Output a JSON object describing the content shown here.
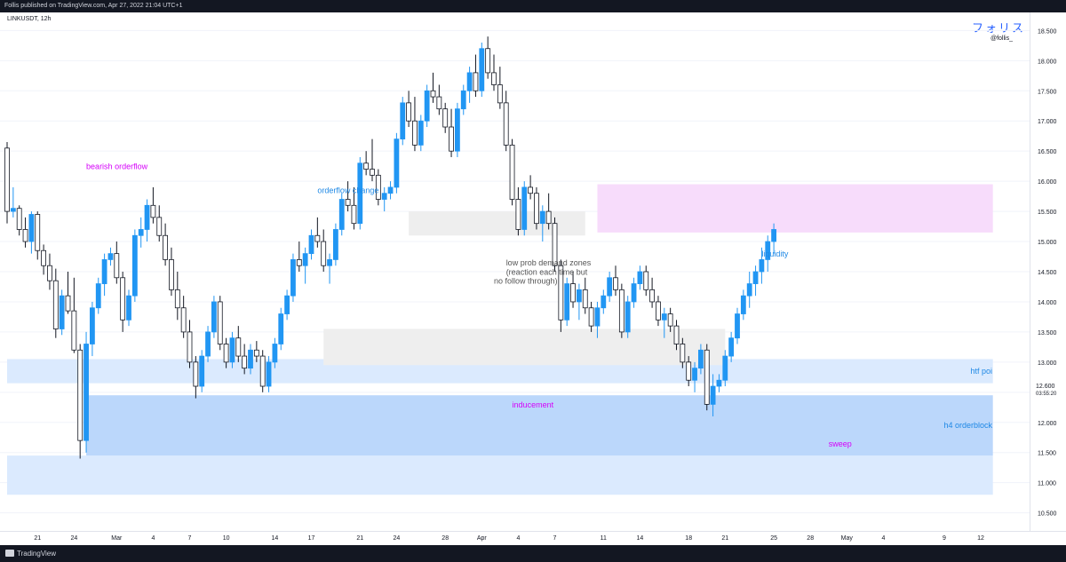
{
  "header": {
    "published_text": "Follis published on TradingView.com, Apr 27, 2022 21:04 UTC+1",
    "symbol": "LINKUSDT, 12h",
    "brand": "フォリス",
    "handle": "@follis_"
  },
  "footer": {
    "logo_text": "TradingView"
  },
  "chart_data": {
    "type": "candlestick",
    "symbol": "LINKUSDT",
    "interval": "12h",
    "y_axis": {
      "range": [
        10.2,
        18.8
      ],
      "ticks": [
        "18.500",
        "18.000",
        "17.500",
        "17.000",
        "16.500",
        "16.000",
        "15.500",
        "15.000",
        "14.500",
        "14.000",
        "13.500",
        "13.000",
        "12.500",
        "12.000",
        "11.500",
        "11.000",
        "10.500"
      ]
    },
    "x_axis": {
      "ticks": [
        {
          "label": "21",
          "i": 5
        },
        {
          "label": "24",
          "i": 11
        },
        {
          "label": "Mar",
          "i": 18
        },
        {
          "label": "4",
          "i": 24
        },
        {
          "label": "7",
          "i": 30
        },
        {
          "label": "10",
          "i": 36
        },
        {
          "label": "14",
          "i": 44
        },
        {
          "label": "17",
          "i": 50
        },
        {
          "label": "21",
          "i": 58
        },
        {
          "label": "24",
          "i": 64
        },
        {
          "label": "28",
          "i": 72
        },
        {
          "label": "Apr",
          "i": 78
        },
        {
          "label": "4",
          "i": 84
        },
        {
          "label": "7",
          "i": 90
        },
        {
          "label": "11",
          "i": 98
        },
        {
          "label": "14",
          "i": 104
        },
        {
          "label": "18",
          "i": 112
        },
        {
          "label": "21",
          "i": 118
        },
        {
          "label": "25",
          "i": 126
        },
        {
          "label": "28",
          "i": 132
        },
        {
          "label": "May",
          "i": 138
        },
        {
          "label": "4",
          "i": 144
        },
        {
          "label": "9",
          "i": 154
        },
        {
          "label": "12",
          "i": 160
        }
      ]
    },
    "price_label": {
      "value": "12.600",
      "countdown": "03:55:20"
    },
    "colors": {
      "up": "#2196f3",
      "down": "#131722",
      "grid": "#f0f3fa"
    },
    "candles": [
      [
        16.55,
        16.65,
        15.3,
        15.5
      ],
      [
        15.5,
        15.9,
        15.4,
        15.55
      ],
      [
        15.55,
        15.6,
        15.1,
        15.2
      ],
      [
        15.2,
        15.4,
        14.9,
        15.0
      ],
      [
        15.0,
        15.5,
        14.8,
        15.45
      ],
      [
        15.45,
        15.5,
        14.7,
        14.85
      ],
      [
        14.85,
        14.95,
        14.45,
        14.6
      ],
      [
        14.6,
        14.8,
        14.2,
        14.35
      ],
      [
        14.35,
        14.55,
        13.4,
        13.55
      ],
      [
        13.55,
        14.2,
        13.45,
        14.1
      ],
      [
        14.1,
        14.5,
        13.8,
        13.85
      ],
      [
        13.85,
        14.4,
        13.15,
        13.2
      ],
      [
        13.2,
        13.3,
        11.4,
        11.7
      ],
      [
        11.7,
        13.5,
        11.5,
        13.3
      ],
      [
        13.3,
        14.0,
        13.1,
        13.9
      ],
      [
        13.9,
        14.4,
        13.8,
        14.3
      ],
      [
        14.3,
        14.8,
        14.1,
        14.7
      ],
      [
        14.7,
        14.9,
        14.6,
        14.8
      ],
      [
        14.8,
        15.0,
        14.3,
        14.4
      ],
      [
        14.4,
        14.5,
        13.5,
        13.7
      ],
      [
        13.7,
        14.2,
        13.6,
        14.1
      ],
      [
        14.1,
        15.2,
        14.0,
        15.1
      ],
      [
        15.1,
        15.4,
        14.9,
        15.2
      ],
      [
        15.2,
        15.7,
        15.0,
        15.6
      ],
      [
        15.6,
        15.9,
        15.3,
        15.4
      ],
      [
        15.4,
        15.6,
        15.0,
        15.1
      ],
      [
        15.1,
        15.3,
        14.6,
        14.7
      ],
      [
        14.7,
        14.9,
        14.1,
        14.2
      ],
      [
        14.2,
        14.5,
        13.7,
        13.9
      ],
      [
        13.9,
        14.1,
        13.4,
        13.5
      ],
      [
        13.5,
        13.7,
        12.9,
        13.0
      ],
      [
        13.0,
        13.1,
        12.4,
        12.6
      ],
      [
        12.6,
        13.2,
        12.5,
        13.1
      ],
      [
        13.1,
        13.6,
        13.0,
        13.5
      ],
      [
        13.5,
        14.1,
        13.4,
        14.0
      ],
      [
        14.0,
        14.1,
        13.2,
        13.3
      ],
      [
        13.3,
        13.4,
        12.9,
        13.0
      ],
      [
        13.0,
        13.5,
        12.9,
        13.4
      ],
      [
        13.4,
        13.6,
        13.0,
        13.1
      ],
      [
        13.1,
        13.3,
        12.8,
        12.9
      ],
      [
        12.9,
        13.3,
        12.8,
        13.2
      ],
      [
        13.2,
        13.35,
        13.0,
        13.1
      ],
      [
        13.1,
        13.2,
        12.5,
        12.6
      ],
      [
        12.6,
        13.1,
        12.5,
        13.0
      ],
      [
        13.0,
        13.4,
        12.9,
        13.3
      ],
      [
        13.3,
        13.9,
        13.2,
        13.8
      ],
      [
        13.8,
        14.2,
        13.7,
        14.1
      ],
      [
        14.1,
        14.8,
        14.0,
        14.7
      ],
      [
        14.7,
        15.0,
        14.5,
        14.6
      ],
      [
        14.6,
        14.9,
        14.3,
        14.8
      ],
      [
        14.8,
        15.2,
        14.7,
        15.1
      ],
      [
        15.1,
        15.4,
        14.9,
        15.0
      ],
      [
        15.0,
        15.2,
        14.5,
        14.6
      ],
      [
        14.6,
        14.8,
        14.3,
        14.7
      ],
      [
        14.7,
        15.3,
        14.6,
        15.2
      ],
      [
        15.2,
        15.8,
        15.1,
        15.7
      ],
      [
        15.7,
        16.0,
        15.5,
        15.6
      ],
      [
        15.6,
        15.9,
        15.2,
        15.3
      ],
      [
        15.3,
        16.4,
        15.2,
        16.3
      ],
      [
        16.3,
        16.5,
        16.1,
        16.2
      ],
      [
        16.2,
        16.7,
        16.0,
        16.1
      ],
      [
        16.1,
        16.2,
        15.6,
        15.7
      ],
      [
        15.7,
        15.9,
        15.5,
        15.8
      ],
      [
        15.8,
        16.0,
        15.7,
        15.9
      ],
      [
        15.9,
        16.8,
        15.8,
        16.7
      ],
      [
        16.7,
        17.4,
        16.6,
        17.3
      ],
      [
        17.3,
        17.5,
        16.9,
        17.0
      ],
      [
        17.0,
        17.4,
        16.5,
        16.6
      ],
      [
        16.6,
        17.1,
        16.5,
        17.0
      ],
      [
        17.0,
        17.6,
        16.9,
        17.5
      ],
      [
        17.5,
        17.8,
        17.3,
        17.4
      ],
      [
        17.4,
        17.6,
        17.1,
        17.2
      ],
      [
        17.2,
        17.3,
        16.8,
        16.9
      ],
      [
        16.9,
        17.2,
        16.4,
        16.5
      ],
      [
        16.5,
        17.3,
        16.4,
        17.2
      ],
      [
        17.2,
        17.6,
        17.1,
        17.5
      ],
      [
        17.5,
        17.9,
        17.3,
        17.8
      ],
      [
        17.8,
        18.1,
        17.4,
        17.5
      ],
      [
        17.5,
        18.3,
        17.4,
        18.2
      ],
      [
        18.2,
        18.4,
        17.7,
        17.8
      ],
      [
        17.8,
        18.1,
        17.5,
        17.6
      ],
      [
        17.6,
        17.9,
        17.2,
        17.3
      ],
      [
        17.3,
        17.5,
        16.5,
        16.6
      ],
      [
        16.6,
        16.7,
        15.6,
        15.7
      ],
      [
        15.7,
        15.9,
        15.1,
        15.2
      ],
      [
        15.2,
        16.0,
        15.1,
        15.9
      ],
      [
        15.9,
        16.1,
        15.7,
        15.8
      ],
      [
        15.8,
        15.9,
        15.2,
        15.3
      ],
      [
        15.3,
        15.6,
        15.0,
        15.5
      ],
      [
        15.5,
        15.8,
        15.2,
        15.3
      ],
      [
        15.3,
        15.4,
        14.5,
        14.6
      ],
      [
        14.6,
        14.7,
        13.5,
        13.7
      ],
      [
        13.7,
        14.4,
        13.6,
        14.3
      ],
      [
        14.3,
        14.5,
        13.9,
        14.0
      ],
      [
        14.0,
        14.3,
        13.7,
        14.2
      ],
      [
        14.2,
        14.4,
        13.8,
        13.9
      ],
      [
        13.9,
        14.0,
        13.5,
        13.6
      ],
      [
        13.6,
        14.0,
        13.4,
        13.9
      ],
      [
        13.9,
        14.2,
        13.8,
        14.1
      ],
      [
        14.1,
        14.5,
        14.0,
        14.4
      ],
      [
        14.4,
        14.6,
        14.1,
        14.2
      ],
      [
        14.2,
        14.3,
        13.4,
        13.5
      ],
      [
        13.5,
        14.1,
        13.4,
        14.0
      ],
      [
        14.0,
        14.4,
        13.9,
        14.3
      ],
      [
        14.3,
        14.6,
        14.2,
        14.5
      ],
      [
        14.5,
        14.6,
        14.1,
        14.2
      ],
      [
        14.2,
        14.4,
        13.9,
        14.0
      ],
      [
        14.0,
        14.1,
        13.6,
        13.7
      ],
      [
        13.7,
        13.9,
        13.4,
        13.8
      ],
      [
        13.8,
        13.9,
        13.5,
        13.6
      ],
      [
        13.6,
        13.7,
        13.2,
        13.3
      ],
      [
        13.3,
        13.4,
        12.9,
        13.0
      ],
      [
        13.0,
        13.1,
        12.6,
        12.7
      ],
      [
        12.7,
        13.0,
        12.5,
        12.9
      ],
      [
        12.9,
        13.3,
        12.8,
        13.2
      ],
      [
        13.2,
        13.3,
        12.2,
        12.3
      ],
      [
        12.3,
        12.8,
        12.1,
        12.6
      ],
      [
        12.6,
        12.8,
        12.5,
        12.7
      ],
      [
        12.7,
        13.2,
        12.6,
        13.1
      ],
      [
        13.1,
        13.5,
        13.0,
        13.4
      ],
      [
        13.4,
        13.9,
        13.3,
        13.8
      ],
      [
        13.8,
        14.2,
        13.7,
        14.1
      ],
      [
        14.1,
        14.5,
        13.9,
        14.3
      ],
      [
        14.3,
        14.6,
        14.1,
        14.5
      ],
      [
        14.5,
        14.9,
        14.3,
        14.7
      ],
      [
        14.7,
        15.1,
        14.5,
        15.0
      ],
      [
        15.0,
        15.3,
        14.8,
        15.2
      ]
    ],
    "zones": [
      {
        "label": "htf poi",
        "color": "#dbeafe",
        "from_i": 0,
        "to_i": 162,
        "y1": 12.65,
        "y2": 13.05,
        "label_color": "#1e88e5"
      },
      {
        "label": "",
        "color": "#dbeafe",
        "from_i": 0,
        "to_i": 162,
        "y1": 10.8,
        "y2": 11.45,
        "label_color": "#1e88e5"
      },
      {
        "label": "h4 orderblock",
        "color": "#bbd7fb",
        "from_i": 13,
        "to_i": 162,
        "y1": 11.45,
        "y2": 12.45,
        "label_color": "#1e88e5"
      },
      {
        "label": "",
        "color": "#eeeeee",
        "from_i": 52,
        "to_i": 118,
        "y1": 12.95,
        "y2": 13.55,
        "label_color": "#555555"
      },
      {
        "label": "",
        "color": "#eeeeee",
        "from_i": 66,
        "to_i": 95,
        "y1": 15.1,
        "y2": 15.5,
        "label_color": "#555555"
      },
      {
        "label": "",
        "color": "#f7dcfb",
        "from_i": 97,
        "to_i": 162,
        "y1": 15.15,
        "y2": 15.95,
        "label_color": "#d500f9"
      }
    ],
    "annotations": [
      {
        "text": "bearish orderflow",
        "i": 13,
        "y": 16.2,
        "color": "#d500f9"
      },
      {
        "text": "orderflow change",
        "i": 51,
        "y": 15.8,
        "color": "#1e88e5"
      },
      {
        "text": "low prob demand zones",
        "i": 82,
        "y": 14.6,
        "color": "#555555"
      },
      {
        "text": "(reaction each time but",
        "i": 82,
        "y": 14.45,
        "color": "#555555"
      },
      {
        "text": "no follow through)",
        "i": 80,
        "y": 14.3,
        "color": "#555555"
      },
      {
        "text": "liquidity",
        "i": 124,
        "y": 14.75,
        "color": "#1e88e5"
      },
      {
        "text": "inducement",
        "i": 83,
        "y": 12.25,
        "color": "#d500f9"
      },
      {
        "text": "sweep",
        "i": 135,
        "y": 11.6,
        "color": "#d500f9"
      }
    ]
  }
}
